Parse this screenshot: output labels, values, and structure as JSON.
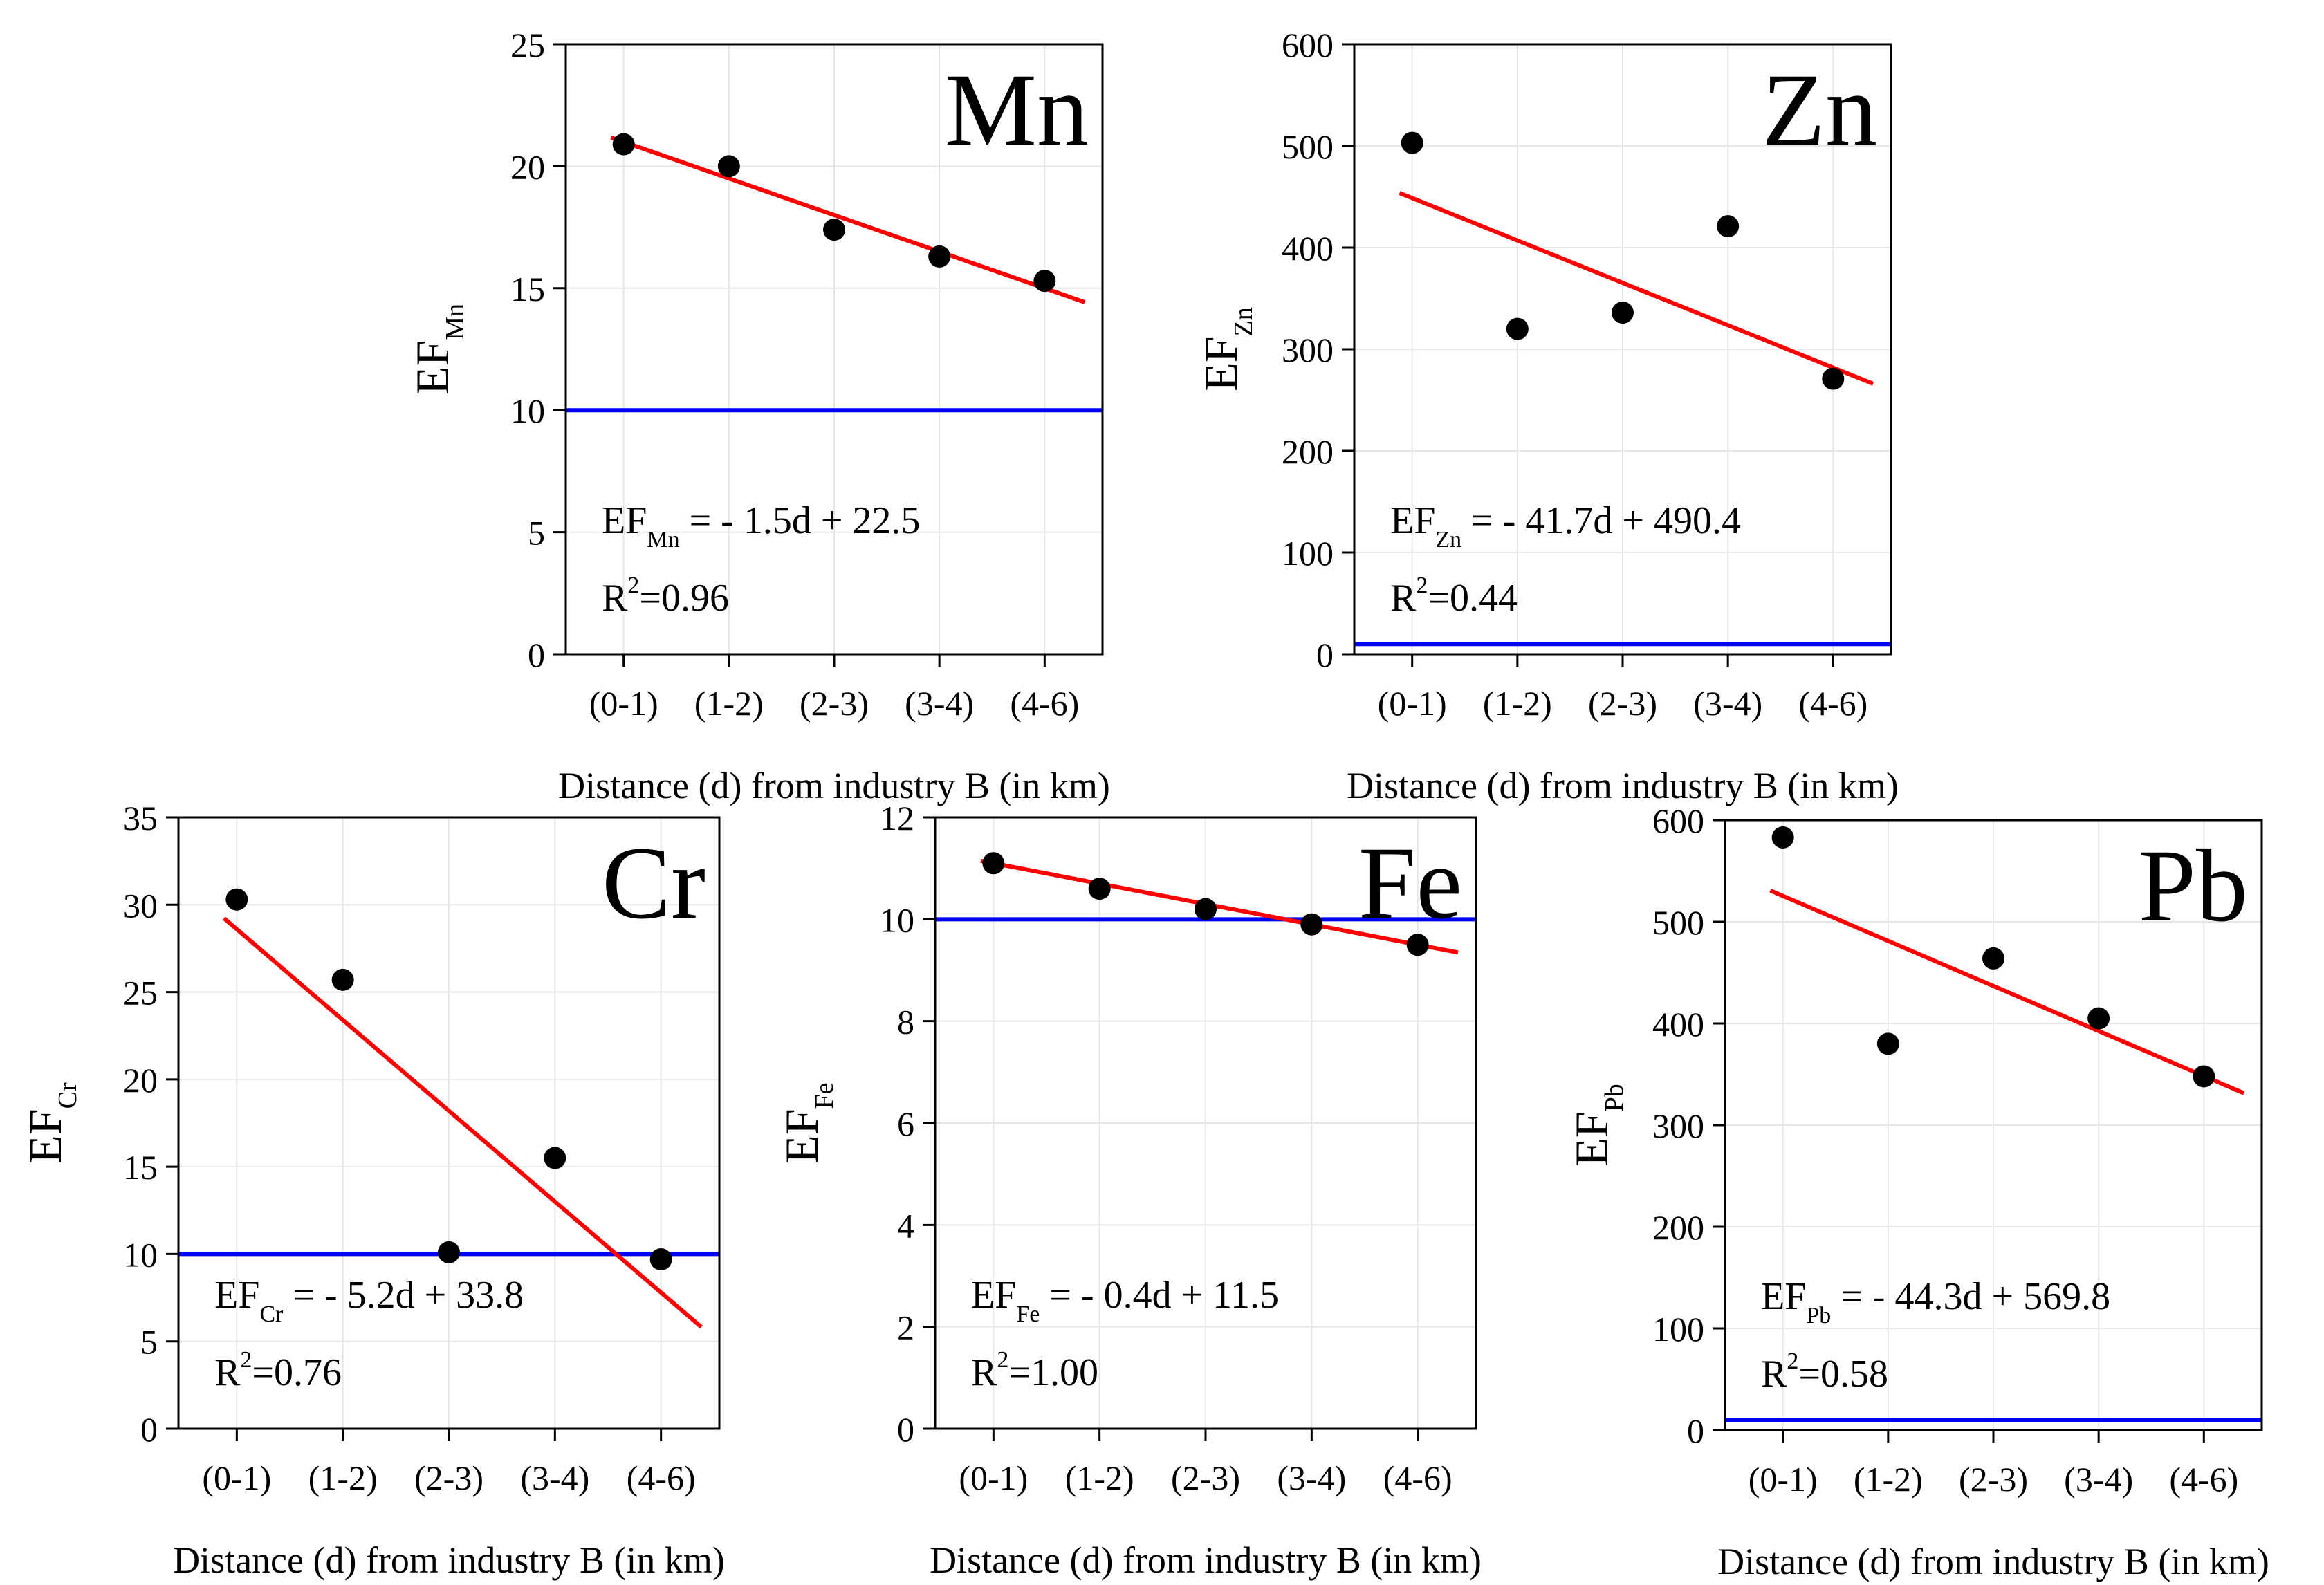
{
  "colors": {
    "fit_line": "#ff0000",
    "threshold_line": "#0000ff",
    "points": "#000000"
  },
  "chart_data": [
    {
      "type": "scatter",
      "element": "Mn",
      "categories": [
        "(0-1)",
        "(1-2)",
        "(2-3)",
        "(3-4)",
        "(4-6)"
      ],
      "values": [
        20.9,
        20.0,
        17.4,
        16.3,
        15.3
      ],
      "ylim": [
        0,
        25
      ],
      "yticks": [
        0,
        5,
        10,
        15,
        20,
        25
      ],
      "ylabel": {
        "main": "EF",
        "sub": "Mn"
      },
      "xlabel": "Distance (d) from industry B (in km)",
      "fit": {
        "slope": -1.5,
        "intercept": 22.5
      },
      "threshold": 10,
      "equation": {
        "prefix": "EF",
        "sub": "Mn",
        "rest": " = - 1.5d + 22.5"
      },
      "r2": {
        "label": "R",
        "sup": "2",
        "value": "=0.96"
      },
      "grid": true
    },
    {
      "type": "scatter",
      "element": "Zn",
      "categories": [
        "(0-1)",
        "(1-2)",
        "(2-3)",
        "(3-4)",
        "(4-6)"
      ],
      "values": [
        503,
        320,
        336,
        421,
        271
      ],
      "ylim": [
        0,
        600
      ],
      "yticks": [
        0,
        100,
        200,
        300,
        400,
        500,
        600
      ],
      "ylabel": {
        "main": "EF",
        "sub": "Zn"
      },
      "xlabel": "Distance (d) from industry B (in km)",
      "fit": {
        "slope": -41.7,
        "intercept": 490.4
      },
      "threshold": 10,
      "equation": {
        "prefix": "EF",
        "sub": "Zn",
        "rest": " = - 41.7d + 490.4"
      },
      "r2": {
        "label": "R",
        "sup": "2",
        "value": "=0.44"
      },
      "grid": true
    },
    {
      "type": "scatter",
      "element": "Cr",
      "categories": [
        "(0-1)",
        "(1-2)",
        "(2-3)",
        "(3-4)",
        "(4-6)"
      ],
      "values": [
        30.3,
        25.7,
        10.1,
        15.5,
        9.7
      ],
      "ylim": [
        0,
        35
      ],
      "yticks": [
        0,
        5,
        10,
        15,
        20,
        25,
        30,
        35
      ],
      "ylabel": {
        "main": "EF",
        "sub": "Cr"
      },
      "xlabel": "Distance (d) from industry B (in km)",
      "fit": {
        "slope": -5.2,
        "intercept": 33.8
      },
      "threshold": 10,
      "equation": {
        "prefix": "EF",
        "sub": "Cr",
        "rest": " = - 5.2d + 33.8"
      },
      "r2": {
        "label": "R",
        "sup": "2",
        "value": "=0.76"
      },
      "grid": true
    },
    {
      "type": "scatter",
      "element": "Fe",
      "categories": [
        "(0-1)",
        "(1-2)",
        "(2-3)",
        "(3-4)",
        "(4-6)"
      ],
      "values": [
        11.1,
        10.6,
        10.2,
        9.9,
        9.5
      ],
      "ylim": [
        0,
        12
      ],
      "yticks": [
        0,
        2,
        4,
        6,
        8,
        10,
        12
      ],
      "ylabel": {
        "main": "EF",
        "sub": "Fe"
      },
      "xlabel": "Distance (d) from industry B (in km)",
      "fit": {
        "slope": -0.4,
        "intercept": 11.5
      },
      "threshold": 10,
      "equation": {
        "prefix": "EF",
        "sub": "Fe",
        "rest": " = - 0.4d + 11.5"
      },
      "r2": {
        "label": "R",
        "sup": "2",
        "value": "=1.00"
      },
      "grid": true
    },
    {
      "type": "scatter",
      "element": "Pb",
      "categories": [
        "(0-1)",
        "(1-2)",
        "(2-3)",
        "(3-4)",
        "(4-6)"
      ],
      "values": [
        583,
        380,
        464,
        405,
        348
      ],
      "ylim": [
        0,
        600
      ],
      "yticks": [
        0,
        100,
        200,
        300,
        400,
        500,
        600
      ],
      "ylabel": {
        "main": "EF",
        "sub": "Pb"
      },
      "xlabel": "Distance (d) from industry B (in km)",
      "fit": {
        "slope": -44.3,
        "intercept": 569.8
      },
      "threshold": 10,
      "equation": {
        "prefix": "EF",
        "sub": "Pb",
        "rest": " = - 44.3d + 569.8"
      },
      "r2": {
        "label": "R",
        "sup": "2",
        "value": "=0.58"
      },
      "grid": true
    }
  ]
}
